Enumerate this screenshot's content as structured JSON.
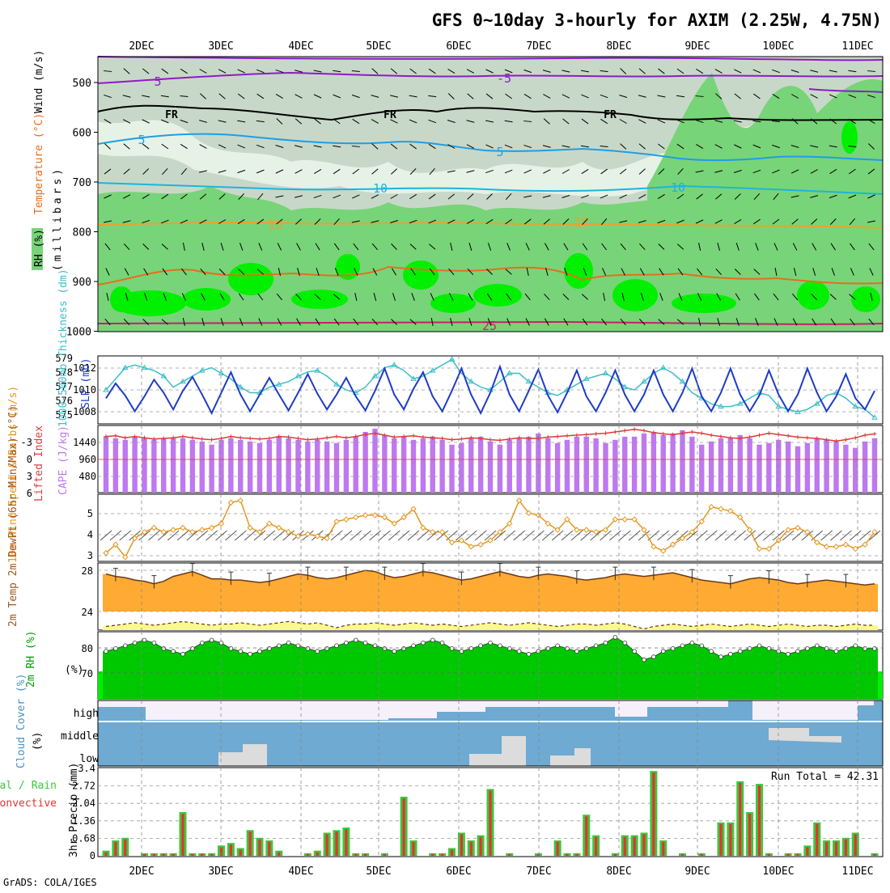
{
  "title": "GFS 0~10day 3-hourly for AXIM (2.25W, 4.75N)",
  "credit": "GrADS: COLA/IGES",
  "colors": {
    "rh_light": "#e6f2e6",
    "rh_mid": "#c8d8c8",
    "rh_dark": "#78d478",
    "rh_bright": "#00f000",
    "temp_purple": "#8c1cc8",
    "temp_blue": "#1e9ee6",
    "temp_cyan": "#1eb4dc",
    "temp_orange": "#f0a028",
    "temp_dorange": "#e66e1e",
    "temp_pink": "#c81e6e",
    "slp": "#1e3cc8",
    "thick": "#3cbec8",
    "cape": "#be78f0",
    "li": "#dc3c3c",
    "wind": "#e6961e",
    "temp2m": "#ffaa32",
    "dew": "#fafa8c",
    "rh2m": "#00c800",
    "cloud": "#6eaad2",
    "cloud_bg": "#f5f0fa",
    "cloud_low": "#dcdcdc",
    "precip_total": "#3cc83c",
    "precip_conv": "#e63232"
  },
  "date_labels": [
    "2DEC",
    "3DEC",
    "4DEC",
    "5DEC",
    "6DEC",
    "7DEC",
    "8DEC",
    "9DEC",
    "10DEC",
    "11DEC"
  ],
  "chart_data": [
    {
      "type": "heatmap",
      "name": "upper_air",
      "ylabel": "(millibars)",
      "labels": [
        "RH (%)",
        "Temperature (°C)",
        "Wind (m/s)"
      ],
      "y_ticks": [
        "500",
        "600",
        "700",
        "800",
        "900",
        "1000"
      ],
      "contour_labels": [
        "5",
        "-5",
        "FR",
        "FR",
        "FR",
        "5",
        "5",
        "10",
        "10",
        "15",
        "15",
        "25"
      ]
    },
    {
      "type": "line",
      "name": "slp_thickness",
      "ylabel_left": "1000-500mb Thickness (dm)",
      "ylabel_right": "SLP (mb)",
      "left_ticks": [
        "579",
        "578",
        "577",
        "576",
        "575"
      ],
      "right_ticks": [
        "1012",
        "1010",
        "1008"
      ],
      "slp": [
        1009.2,
        1010.8,
        1009.5,
        1007.8,
        1009.4,
        1011.2,
        1009.8,
        1008.0,
        1010.0,
        1011.5,
        1009.6,
        1007.6,
        1009.8,
        1012.0,
        1009.6,
        1007.8,
        1009.6,
        1011.4,
        1009.6,
        1007.9,
        1009.8,
        1011.8,
        1009.7,
        1008.0,
        1009.6,
        1011.4,
        1009.4,
        1007.9,
        1010.0,
        1012.4,
        1009.6,
        1008.0,
        1010.2,
        1012.0,
        1009.4,
        1007.8,
        1010.0,
        1012.4,
        1009.6,
        1007.6,
        1009.8,
        1012.6,
        1009.6,
        1007.8,
        1010.0,
        1012.3,
        1009.5,
        1007.7,
        1009.8,
        1012.2,
        1009.4,
        1007.8,
        1009.8,
        1012.2,
        1009.6,
        1007.8,
        1009.6,
        1012.2,
        1009.6,
        1007.8,
        1009.8,
        1012.4,
        1009.4,
        1007.8,
        1009.8,
        1012.4,
        1009.6,
        1007.8,
        1009.5,
        1012.2,
        1009.6,
        1007.8,
        1009.6,
        1012.4,
        1009.8,
        1007.8,
        1009.4,
        1011.8,
        1009.2,
        1008.0,
        1010.0
      ],
      "thickness": [
        576.6,
        577.4,
        578.2,
        578.4,
        578.2,
        578.0,
        577.6,
        576.8,
        577.2,
        577.6,
        578.0,
        578.2,
        577.8,
        577.4,
        576.8,
        576.4,
        576.4,
        576.8,
        577.0,
        577.2,
        577.6,
        577.9,
        578.0,
        577.6,
        577.0,
        576.6,
        576.4,
        576.8,
        577.6,
        578.2,
        578.4,
        578.0,
        577.4,
        577.6,
        578.0,
        578.4,
        578.8,
        577.8,
        577.2,
        576.8,
        576.6,
        577.2,
        577.8,
        577.8,
        577.2,
        576.8,
        576.4,
        576.2,
        576.6,
        577.0,
        577.4,
        577.6,
        577.8,
        577.4,
        576.8,
        576.6,
        577.2,
        577.8,
        578.2,
        577.8,
        577.2,
        576.4,
        576.0,
        575.6,
        575.4,
        575.4,
        575.6,
        576.0,
        576.4,
        576.2,
        575.4,
        575.2,
        575.0,
        575.2,
        575.6,
        576.2,
        576.4,
        576.0,
        575.4,
        575.2,
        574.6
      ]
    },
    {
      "type": "bar",
      "name": "cape_li",
      "ylabel_left": "Lifted Index",
      "ylabel_right": "CAPE (J/kg)",
      "left_ticks": [
        "-3",
        "0",
        "3",
        "6"
      ],
      "right_ticks": [
        "1440",
        "960",
        "480"
      ],
      "cape": [
        1400,
        1360,
        1320,
        1400,
        1360,
        1320,
        1360,
        1360,
        1360,
        1320,
        1280,
        1200,
        1320,
        1360,
        1320,
        1280,
        1240,
        1320,
        1400,
        1360,
        1320,
        1280,
        1320,
        1280,
        1240,
        1320,
        1400,
        1520,
        1600,
        1440,
        1360,
        1400,
        1320,
        1360,
        1400,
        1320,
        1200,
        1240,
        1360,
        1400,
        1280,
        1200,
        1320,
        1360,
        1400,
        1480,
        1360,
        1240,
        1320,
        1400,
        1400,
        1360,
        1240,
        1320,
        1400,
        1400,
        1480,
        1520,
        1440,
        1480,
        1560,
        1400,
        1200,
        1280,
        1360,
        1360,
        1440,
        1360,
        1200,
        1240,
        1320,
        1280,
        1160,
        1240,
        1360,
        1320,
        1280,
        1200,
        1120,
        1280,
        1360
      ],
      "lifted_index": [
        -2.8,
        -2.9,
        -2.6,
        -2.8,
        -2.6,
        -2.4,
        -2.5,
        -2.6,
        -2.8,
        -2.6,
        -2.4,
        -2.3,
        -2.5,
        -2.8,
        -2.6,
        -2.5,
        -2.4,
        -2.5,
        -2.8,
        -2.7,
        -2.5,
        -2.3,
        -2.4,
        -2.6,
        -2.8,
        -2.6,
        -2.8,
        -3.1,
        -3.3,
        -3.0,
        -2.7,
        -2.8,
        -2.9,
        -2.7,
        -2.6,
        -2.5,
        -2.3,
        -2.4,
        -2.6,
        -2.5,
        -2.3,
        -2.2,
        -2.4,
        -2.6,
        -2.5,
        -2.5,
        -2.7,
        -2.8,
        -2.9,
        -3.0,
        -3.1,
        -3.2,
        -3.3,
        -3.5,
        -3.7,
        -3.9,
        -3.7,
        -3.4,
        -3.2,
        -3.1,
        -3.3,
        -3.5,
        -3.3,
        -3.0,
        -2.8,
        -2.6,
        -2.5,
        -2.7,
        -3.0,
        -3.3,
        -3.1,
        -2.9,
        -2.7,
        -2.6,
        -2.5,
        -2.3,
        -2.1,
        -2.3,
        -2.6,
        -3.0,
        -3.2
      ]
    },
    {
      "type": "line",
      "name": "wind10m",
      "ylabel": "10m Wind Speed & Barbs (m/s)",
      "ticks": [
        "5",
        "4",
        "3"
      ],
      "speed": [
        3.2,
        3.6,
        3.0,
        3.9,
        4.2,
        4.4,
        4.2,
        4.3,
        4.4,
        4.2,
        4.3,
        4.4,
        4.6,
        5.6,
        5.7,
        4.4,
        4.2,
        4.6,
        4.4,
        4.2,
        4.0,
        4.1,
        4.0,
        3.9,
        4.7,
        4.8,
        4.9,
        5.0,
        5.0,
        4.9,
        4.6,
        4.9,
        5.3,
        4.4,
        4.2,
        4.2,
        3.7,
        3.8,
        3.5,
        3.6,
        3.8,
        4.2,
        4.6,
        5.7,
        5.1,
        5.0,
        4.6,
        4.3,
        4.8,
        4.3,
        4.3,
        4.2,
        4.3,
        4.8,
        4.8,
        4.8,
        4.3,
        3.5,
        3.3,
        3.6,
        3.9,
        4.2,
        4.7,
        5.4,
        5.3,
        5.2,
        4.9,
        4.3,
        3.4,
        3.4,
        3.8,
        4.3,
        4.4,
        4.2,
        3.7,
        3.5,
        3.5,
        3.6,
        3.4,
        3.6,
        4.2
      ]
    },
    {
      "type": "area",
      "name": "temp2m",
      "ylabel": "2m Temp 2m DewPt (6hr Min/Max) (°C)",
      "ticks": [
        "28",
        "24"
      ],
      "temp": [
        27.6,
        27.4,
        27.3,
        27.1,
        27.0,
        26.8,
        27.0,
        27.4,
        27.6,
        27.8,
        27.5,
        27.2,
        27.2,
        27.1,
        27.1,
        27.0,
        26.9,
        27.0,
        27.2,
        27.4,
        27.6,
        27.5,
        27.3,
        27.2,
        27.3,
        27.5,
        27.7,
        27.9,
        27.8,
        27.5,
        27.3,
        27.4,
        27.6,
        27.8,
        27.7,
        27.5,
        27.3,
        27.1,
        27.2,
        27.4,
        27.6,
        27.8,
        27.6,
        27.4,
        27.3,
        27.5,
        27.6,
        27.5,
        27.4,
        27.2,
        27.1,
        27.2,
        27.3,
        27.5,
        27.6,
        27.5,
        27.4,
        27.5,
        27.6,
        27.7,
        27.5,
        27.3,
        27.1,
        27.0,
        26.9,
        26.8,
        27.0,
        27.2,
        27.3,
        27.2,
        27.1,
        26.9,
        26.8,
        26.9,
        27.0,
        27.1,
        27.0,
        26.9,
        26.8,
        26.7,
        26.8
      ],
      "dewpt": [
        23.3,
        23.4,
        23.5,
        23.6,
        23.5,
        23.4,
        23.5,
        23.6,
        23.7,
        23.6,
        23.5,
        23.4,
        23.5,
        23.5,
        23.6,
        23.5,
        23.4,
        23.5,
        23.6,
        23.7,
        23.6,
        23.5,
        23.6,
        23.4,
        23.2,
        23.4,
        23.5,
        23.5,
        23.6,
        23.5,
        23.4,
        23.5,
        23.6,
        23.5,
        23.4,
        23.5,
        23.4,
        23.3,
        23.4,
        23.5,
        23.6,
        23.5,
        23.4,
        23.5,
        23.6,
        23.5,
        23.4,
        23.3,
        23.4,
        23.5,
        23.5,
        23.4,
        23.5,
        23.6,
        23.5,
        23.3,
        23.1,
        23.3,
        23.4,
        23.5,
        23.4,
        23.3,
        23.4,
        23.5,
        23.4,
        23.3,
        23.4,
        23.5,
        23.4,
        23.3,
        23.4,
        23.5,
        23.4,
        23.3,
        23.4,
        23.4,
        23.3,
        23.4,
        23.5,
        23.4,
        23.4
      ]
    },
    {
      "type": "area",
      "name": "rh2m",
      "ylabel": "2m RH (%)",
      "ticks": [
        "80",
        "70"
      ],
      "rh": [
        79,
        80,
        81,
        82,
        83,
        82,
        80,
        79,
        78,
        80,
        82,
        83,
        82,
        80,
        79,
        78,
        79,
        80,
        81,
        82,
        81,
        80,
        79,
        80,
        81,
        82,
        83,
        82,
        81,
        80,
        79,
        80,
        81,
        82,
        83,
        82,
        80,
        79,
        80,
        81,
        82,
        81,
        80,
        79,
        78,
        79,
        80,
        81,
        80,
        79,
        80,
        81,
        82,
        84,
        82,
        79,
        76,
        77,
        79,
        80,
        81,
        82,
        81,
        79,
        77,
        78,
        79,
        80,
        81,
        80,
        79,
        78,
        79,
        80,
        81,
        80,
        79,
        80,
        81,
        80,
        80
      ]
    },
    {
      "type": "area",
      "name": "cloud_cover",
      "ylabel": "Cloud Cover (%)",
      "levels": [
        "high",
        "middle",
        "low"
      ]
    },
    {
      "type": "bar",
      "name": "precip",
      "title": "Total / Rain Convective",
      "ylabel": "3hr Precip (mm)",
      "run_total": "Run Total = 42.31",
      "ticks": [
        "3.4",
        "2.72",
        "2.04",
        "1.36",
        "0.68",
        "0"
      ],
      "total": [
        0.2,
        0.6,
        0.7,
        0.0,
        0.1,
        0.1,
        0.1,
        0.1,
        1.7,
        0.1,
        0.1,
        0.1,
        0.4,
        0.5,
        0.3,
        1.0,
        0.7,
        0.6,
        0.2,
        0.0,
        0.0,
        0.1,
        0.2,
        0.9,
        1.0,
        1.1,
        0.1,
        0.1,
        0.0,
        0.1,
        0.0,
        2.3,
        0.6,
        0.0,
        0.1,
        0.1,
        0.3,
        0.9,
        0.6,
        0.8,
        2.6,
        0.0,
        0.1,
        0.0,
        0.0,
        0.1,
        0.0,
        0.6,
        0.1,
        0.1,
        1.6,
        0.8,
        0.0,
        0.1,
        0.8,
        0.8,
        0.9,
        3.3,
        0.6,
        0.0,
        0.1,
        0.0,
        0.1,
        0.0,
        1.3,
        1.3,
        2.9,
        1.7,
        2.8,
        0.1,
        0.0,
        0.1,
        0.1,
        0.4,
        1.3,
        0.6,
        0.6,
        0.7,
        0.9,
        0.0,
        0.1
      ]
    }
  ]
}
